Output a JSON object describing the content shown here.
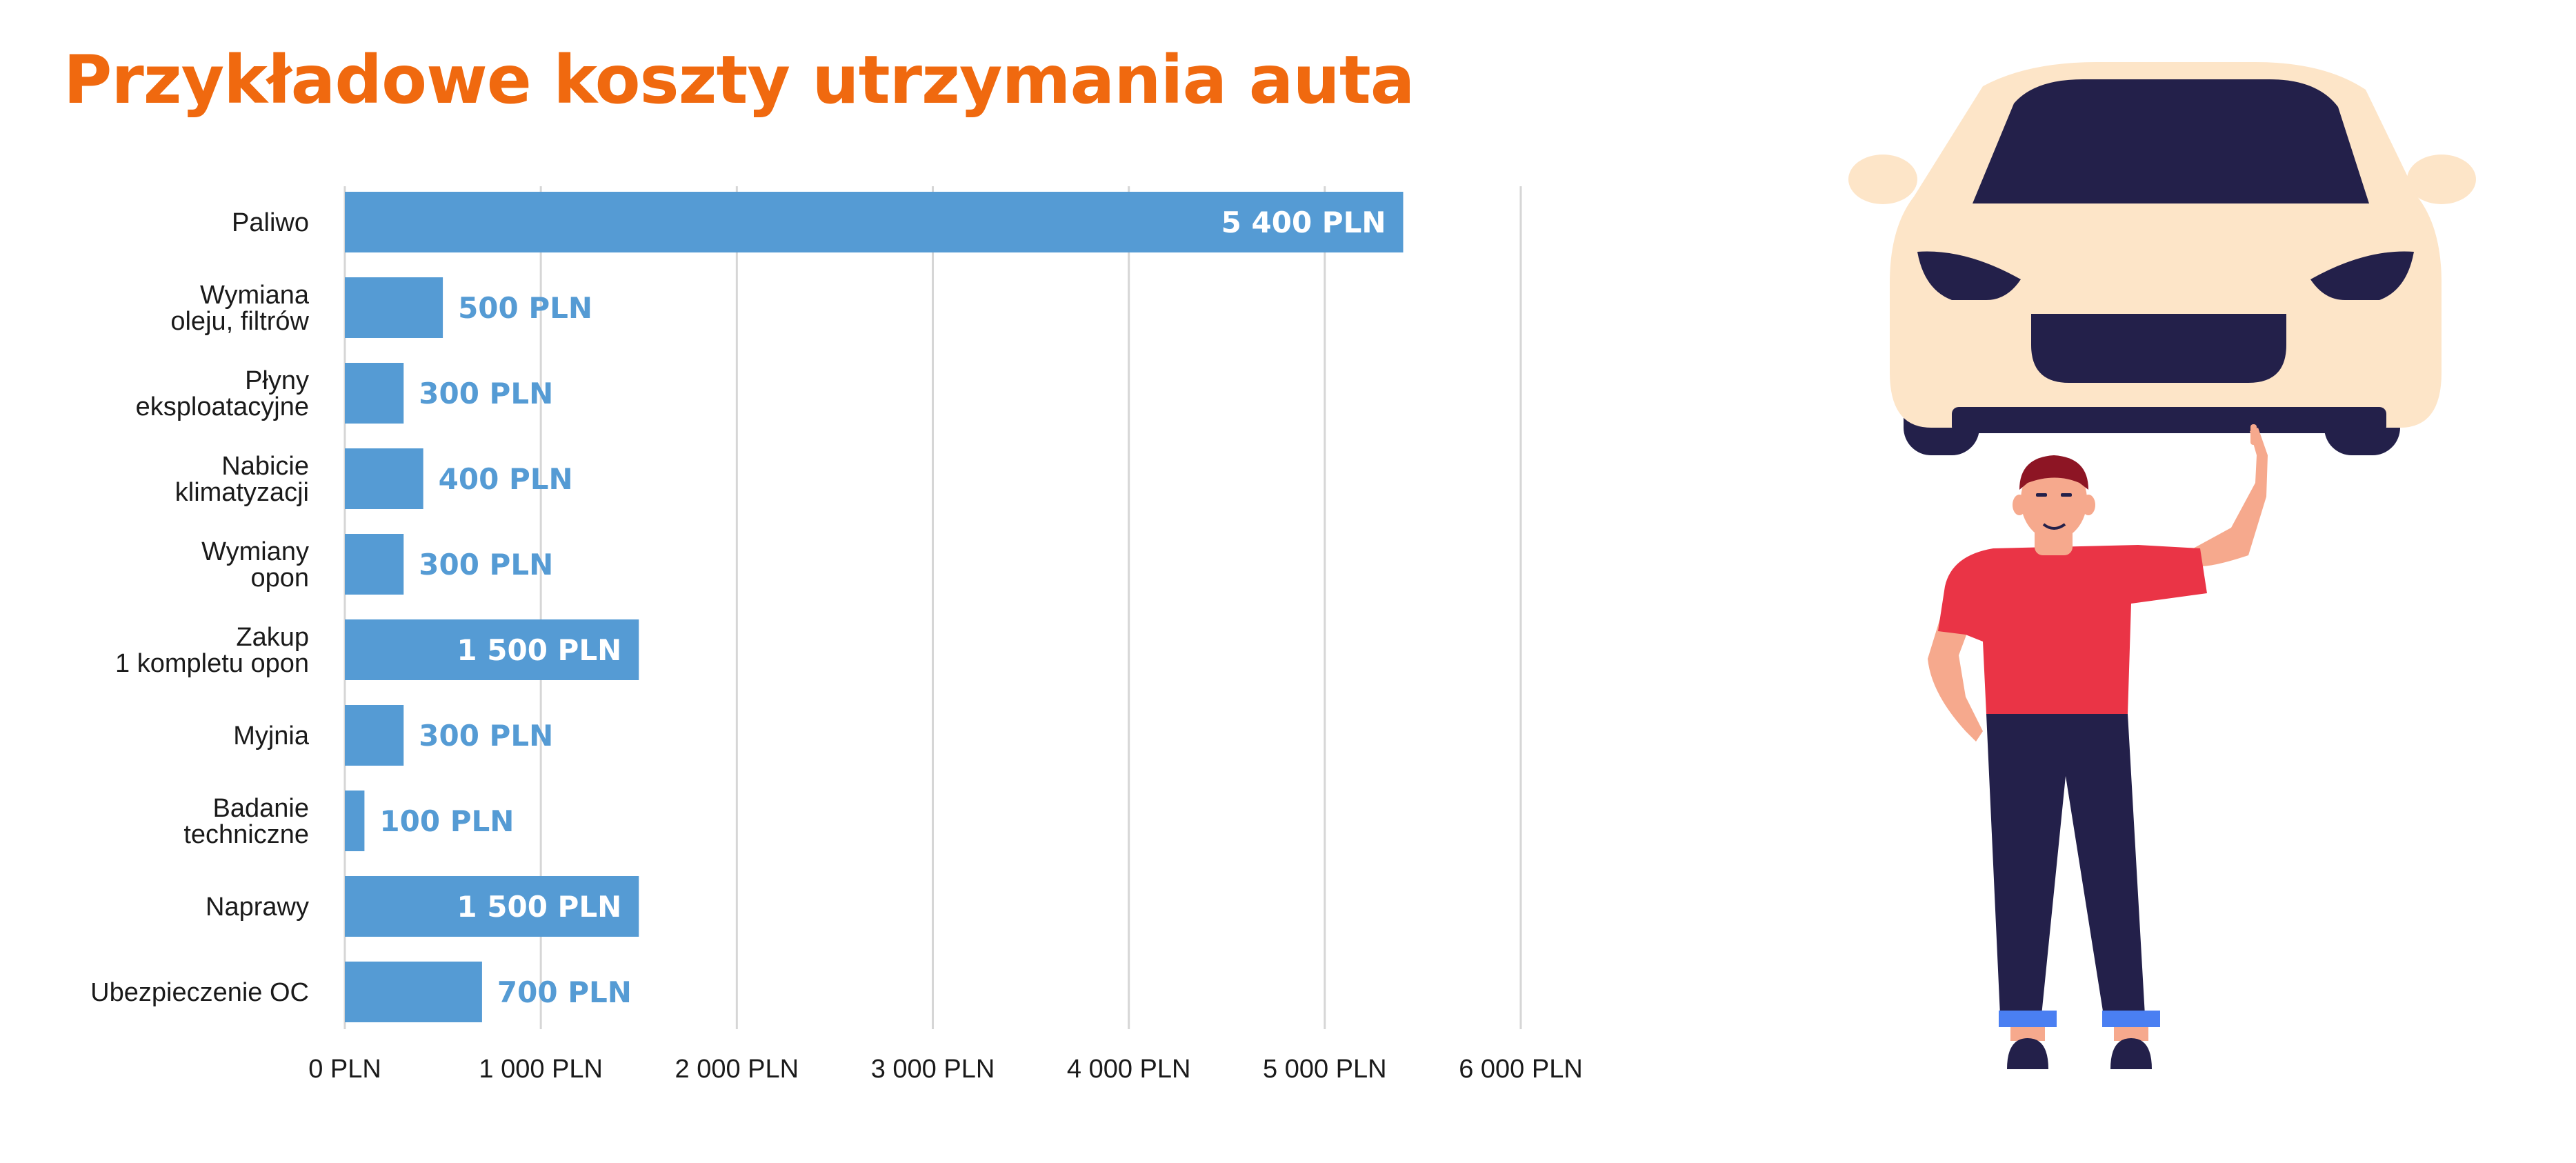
{
  "title": "Przykładowe koszty utrzymania auta",
  "colors": {
    "title": "#f0690f",
    "bar": "#559bd4",
    "label_outside": "#559bd4",
    "label_inside": "#ffffff",
    "grid": "#d6d6d6",
    "text": "#1a1a1a",
    "car_body": "#fde5c8",
    "car_dark": "#23204a",
    "shirt": "#ea3446",
    "skin": "#f6a98d",
    "hair": "#8d1524",
    "pants": "#23204a",
    "socks": "#4a7ff2"
  },
  "chart_data": {
    "type": "bar",
    "orientation": "horizontal",
    "title": "Przykładowe koszty utrzymania auta",
    "categories": [
      [
        "Paliwo"
      ],
      [
        "Wymiana",
        "oleju, filtrów"
      ],
      [
        "Płyny",
        "eksploatacyjne"
      ],
      [
        "Nabicie",
        "klimatyzacji"
      ],
      [
        "Wymiany",
        "opon"
      ],
      [
        "Zakup",
        "1 kompletu opon"
      ],
      [
        "Myjnia"
      ],
      [
        "Badanie",
        "techniczne"
      ],
      [
        "Naprawy"
      ],
      [
        "Ubezpieczenie OC"
      ]
    ],
    "values": [
      5400,
      500,
      300,
      400,
      300,
      1500,
      300,
      100,
      1500,
      700
    ],
    "value_labels": [
      "5 400 PLN",
      "500 PLN",
      "300 PLN",
      "400 PLN",
      "300 PLN",
      "1 500 PLN",
      "300 PLN",
      "100 PLN",
      "1 500 PLN",
      "700 PLN"
    ],
    "xlim": [
      0,
      6000
    ],
    "xticks": [
      0,
      1000,
      2000,
      3000,
      4000,
      5000,
      6000
    ],
    "xtick_labels": [
      "0 PLN",
      "1 000 PLN",
      "2 000 PLN",
      "3 000 PLN",
      "4 000 PLN",
      "5 000 PLN",
      "6 000 PLN"
    ],
    "grid": true,
    "legend": "none"
  },
  "illustration": {
    "subject": "man-pointing-up-at-car",
    "icons": [
      "car-icon",
      "person-icon"
    ]
  }
}
